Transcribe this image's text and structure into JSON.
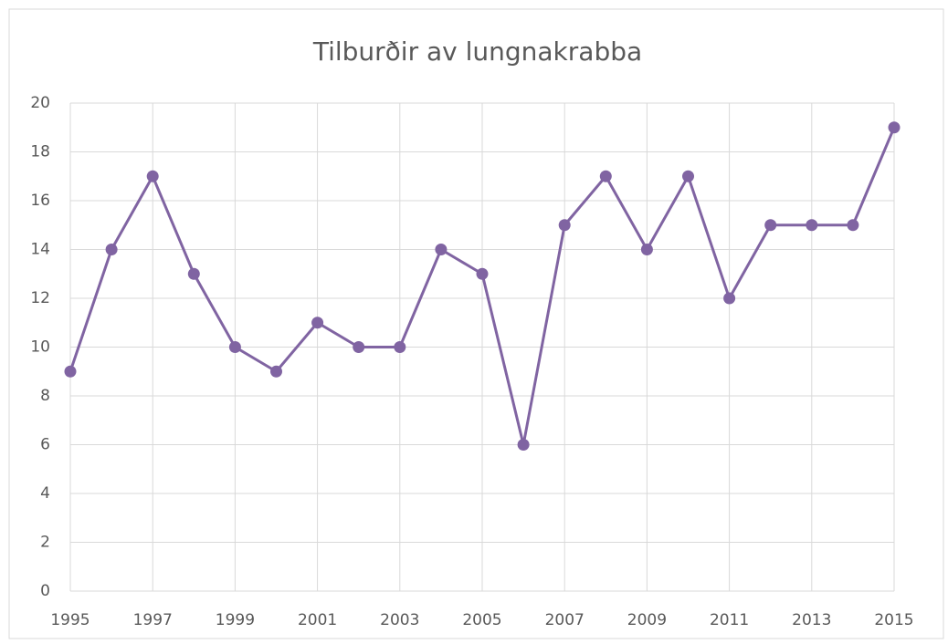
{
  "chart_data": {
    "type": "line",
    "title": "Tilburðir av lungnakrabba",
    "x": [
      1995,
      1996,
      1997,
      1998,
      1999,
      2000,
      2001,
      2002,
      2003,
      2004,
      2005,
      2006,
      2007,
      2008,
      2009,
      2010,
      2011,
      2012,
      2013,
      2014,
      2015
    ],
    "series": [
      {
        "color": "#8064a2",
        "values": [
          9,
          14,
          17,
          13,
          10,
          9,
          11,
          10,
          10,
          14,
          13,
          6,
          15,
          17,
          14,
          17,
          12,
          15,
          15,
          15,
          19
        ]
      }
    ],
    "xlim": [
      1995,
      2015
    ],
    "xticks": [
      1995,
      1997,
      1999,
      2001,
      2003,
      2005,
      2007,
      2009,
      2011,
      2013,
      2015
    ],
    "ylim": [
      0,
      20
    ],
    "yticks": [
      0,
      2,
      4,
      6,
      8,
      10,
      12,
      14,
      16,
      18,
      20
    ],
    "grid": true
  }
}
